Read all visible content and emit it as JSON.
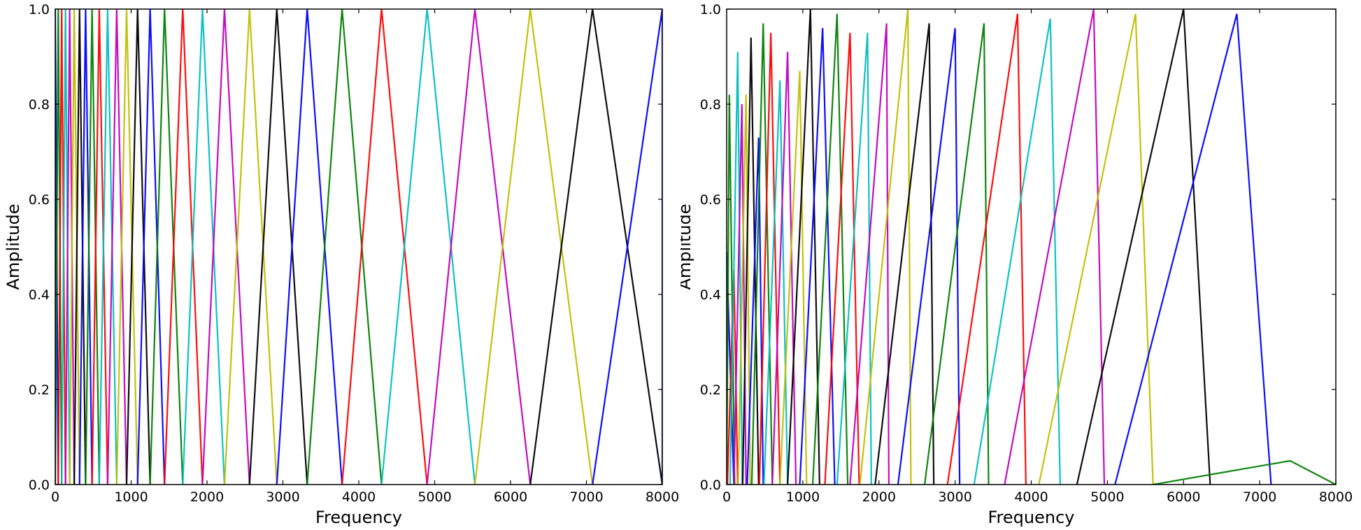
{
  "chart_data": [
    {
      "type": "line",
      "title": "",
      "xlabel": "Frequency",
      "ylabel": "Amplitude",
      "xlim": [
        0,
        8000
      ],
      "ylim": [
        0.0,
        1.0
      ],
      "xticks": [
        "0",
        "1000",
        "2000",
        "3000",
        "4000",
        "5000",
        "6000",
        "7000",
        "8000"
      ],
      "yticks": [
        "0.0",
        "0.2",
        "0.4",
        "0.6",
        "0.8",
        "1.0"
      ],
      "grid": false,
      "legend": "none",
      "colors": [
        "#0000ff",
        "#008000",
        "#ff0000",
        "#00bfbf",
        "#bf00bf",
        "#bfbf00",
        "#000000"
      ],
      "filter_shape": "triangular, adjacent filters overlap; each filter starts at previous center and ends at next center",
      "filter_centers_hz": [
        0,
        40,
        85,
        135,
        190,
        250,
        320,
        400,
        485,
        580,
        690,
        810,
        940,
        1085,
        1250,
        1440,
        1680,
        1940,
        2230,
        2560,
        2920,
        3320,
        3780,
        4300,
        4900,
        5530,
        6260,
        7080,
        8000
      ],
      "filter_peaks": [
        1,
        1,
        1,
        1,
        1,
        1,
        1,
        1,
        1,
        1,
        1,
        1,
        1,
        1,
        1,
        1,
        1,
        1,
        1,
        1,
        1,
        1,
        1,
        1,
        1,
        1,
        1,
        1,
        1
      ]
    },
    {
      "type": "line",
      "title": "",
      "xlabel": "Frequency",
      "ylabel": "Amplitude",
      "xlim": [
        0,
        8000
      ],
      "ylim": [
        0.0,
        1.0
      ],
      "xticks": [
        "0",
        "1000",
        "2000",
        "3000",
        "4000",
        "5000",
        "6000",
        "7000",
        "8000"
      ],
      "yticks": [
        "0.0",
        "0.2",
        "0.4",
        "0.6",
        "0.8",
        "1.0"
      ],
      "grid": false,
      "legend": "none",
      "colors": [
        "#0000ff",
        "#008000",
        "#ff0000",
        "#00bfbf",
        "#bf00bf",
        "#bfbf00",
        "#000000"
      ],
      "filter_shape": "triangular with uneven peak amplitudes",
      "filters": [
        {
          "start": 0,
          "center": 0,
          "end": 95,
          "peak": 0.49
        },
        {
          "start": 0,
          "center": 35,
          "end": 105,
          "peak": 0.82
        },
        {
          "start": 10,
          "center": 95,
          "end": 145,
          "peak": 0.45
        },
        {
          "start": 45,
          "center": 145,
          "end": 205,
          "peak": 0.91
        },
        {
          "start": 95,
          "center": 200,
          "end": 255,
          "peak": 0.8
        },
        {
          "start": 150,
          "center": 255,
          "end": 310,
          "peak": 0.82
        },
        {
          "start": 210,
          "center": 320,
          "end": 420,
          "peak": 0.94
        },
        {
          "start": 270,
          "center": 420,
          "end": 480,
          "peak": 0.73
        },
        {
          "start": 330,
          "center": 480,
          "end": 600,
          "peak": 0.97
        },
        {
          "start": 430,
          "center": 580,
          "end": 700,
          "peak": 0.95
        },
        {
          "start": 490,
          "center": 700,
          "end": 800,
          "peak": 0.85
        },
        {
          "start": 600,
          "center": 800,
          "end": 910,
          "peak": 0.91
        },
        {
          "start": 700,
          "center": 960,
          "end": 1050,
          "peak": 0.87
        },
        {
          "start": 800,
          "center": 1100,
          "end": 1220,
          "peak": 1.0
        },
        {
          "start": 960,
          "center": 1260,
          "end": 1420,
          "peak": 0.96
        },
        {
          "start": 1130,
          "center": 1450,
          "end": 1590,
          "peak": 0.99
        },
        {
          "start": 1290,
          "center": 1620,
          "end": 1740,
          "peak": 0.95
        },
        {
          "start": 1450,
          "center": 1850,
          "end": 1900,
          "peak": 0.95
        },
        {
          "start": 1620,
          "center": 2100,
          "end": 2130,
          "peak": 0.97
        },
        {
          "start": 1750,
          "center": 2380,
          "end": 2420,
          "peak": 1.0
        },
        {
          "start": 1950,
          "center": 2660,
          "end": 2720,
          "peak": 0.97
        },
        {
          "start": 2250,
          "center": 3000,
          "end": 3060,
          "peak": 0.96
        },
        {
          "start": 2600,
          "center": 3380,
          "end": 3440,
          "peak": 0.97
        },
        {
          "start": 2900,
          "center": 3820,
          "end": 3930,
          "peak": 0.99
        },
        {
          "start": 3250,
          "center": 4250,
          "end": 4380,
          "peak": 0.98
        },
        {
          "start": 3650,
          "center": 4820,
          "end": 4960,
          "peak": 1.0
        },
        {
          "start": 4100,
          "center": 5370,
          "end": 5600,
          "peak": 0.99
        },
        {
          "start": 4600,
          "center": 6000,
          "end": 6350,
          "peak": 1.0
        },
        {
          "start": 5100,
          "center": 6700,
          "end": 7150,
          "peak": 0.99
        },
        {
          "start": 5600,
          "center": 7400,
          "end": 8000,
          "peak": 0.05
        }
      ]
    }
  ]
}
